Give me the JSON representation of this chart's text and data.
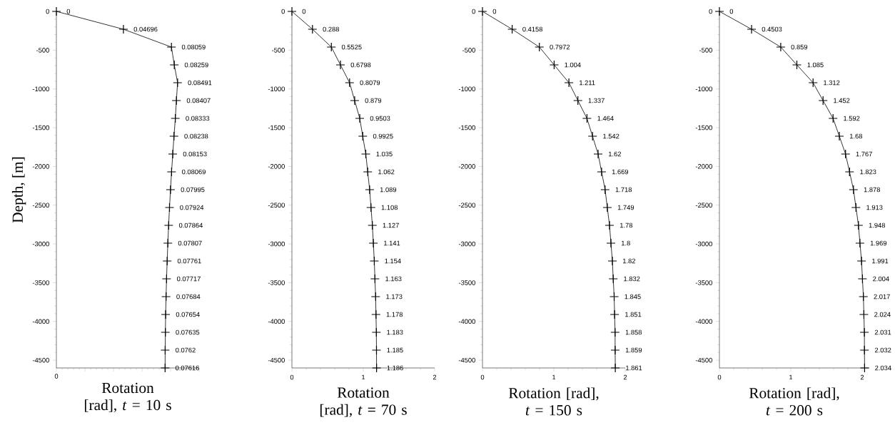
{
  "chart_data": [
    {
      "type": "line",
      "orientation": "horizontal",
      "color": "#000000",
      "marker": "cross",
      "data_labels": true,
      "xlabel": "Rotation [rad], *t* = 10 s",
      "ylabel": "Depth, [m]",
      "annotations": [
        "0"
      ],
      "xlim": [
        0,
        0.1
      ],
      "ylim": [
        -4600,
        0
      ],
      "yticks": [
        0,
        -500,
        -1000,
        -1500,
        -2000,
        -2500,
        -3000,
        -3500,
        -4000,
        -4500
      ],
      "x": [
        0,
        -230,
        -460,
        -690,
        -920,
        -1150,
        -1380,
        -1610,
        -1840,
        -2070,
        -2300,
        -2530,
        -2760,
        -2990,
        -3220,
        -3450,
        -3680,
        -3910,
        -4140,
        -4370,
        -4600
      ],
      "values": [
        0,
        0.04696,
        0.08059,
        0.08259,
        0.08491,
        0.08407,
        0.08333,
        0.08238,
        0.08153,
        0.08069,
        0.07995,
        0.07924,
        0.07864,
        0.07807,
        0.07761,
        0.07717,
        0.07684,
        0.07654,
        0.07635,
        0.0762,
        0.07616
      ]
    },
    {
      "type": "line",
      "orientation": "horizontal",
      "color": "#000000",
      "marker": "cross",
      "data_labels": true,
      "xlabel": "Rotation [rad], *t* = 70 s",
      "xlim": [
        0,
        2
      ],
      "xticks": [
        0,
        1,
        2
      ],
      "ylim": [
        -4600,
        0
      ],
      "yticks": [
        0,
        -500,
        -1000,
        -1500,
        -2000,
        -2500,
        -3000,
        -3500,
        -4000,
        -4500
      ],
      "x": [
        0,
        -230,
        -460,
        -690,
        -920,
        -1150,
        -1380,
        -1610,
        -1840,
        -2070,
        -2300,
        -2530,
        -2760,
        -2990,
        -3220,
        -3450,
        -3680,
        -3910,
        -4140,
        -4370,
        -4600
      ],
      "values": [
        0,
        0.288,
        0.5525,
        0.6798,
        0.8079,
        0.879,
        0.9503,
        0.9925,
        1.035,
        1.062,
        1.089,
        1.108,
        1.127,
        1.141,
        1.154,
        1.163,
        1.173,
        1.178,
        1.183,
        1.185,
        1.186
      ]
    },
    {
      "type": "line",
      "orientation": "horizontal",
      "color": "#000000",
      "marker": "cross",
      "data_labels": true,
      "xlabel": "Rotation [rad], *t* = 150 s",
      "xlim": [
        0,
        2
      ],
      "xticks": [
        0,
        1,
        2
      ],
      "ylim": [
        -4600,
        0
      ],
      "yticks": [
        0,
        -500,
        -1000,
        -1500,
        -2000,
        -2500,
        -3000,
        -3500,
        -4000,
        -4500
      ],
      "x": [
        0,
        -230,
        -460,
        -690,
        -920,
        -1150,
        -1380,
        -1610,
        -1840,
        -2070,
        -2300,
        -2530,
        -2760,
        -2990,
        -3220,
        -3450,
        -3680,
        -3910,
        -4140,
        -4370,
        -4600
      ],
      "values": [
        0,
        0.4158,
        0.7972,
        1.004,
        1.211,
        1.337,
        1.464,
        1.542,
        1.62,
        1.669,
        1.718,
        1.749,
        1.78,
        1.8,
        1.82,
        1.832,
        1.845,
        1.851,
        1.858,
        1.859,
        1.861
      ]
    },
    {
      "type": "line",
      "orientation": "horizontal",
      "color": "#000000",
      "marker": "cross",
      "data_labels": true,
      "xlabel": "Rotation [rad], *t* = 200 s",
      "xlim": [
        0,
        2.1
      ],
      "xticks": [
        0,
        1,
        2
      ],
      "ylim": [
        -4600,
        0
      ],
      "yticks": [
        0,
        -500,
        -1000,
        -1500,
        -2000,
        -2500,
        -3000,
        -3500,
        -4000,
        -4500
      ],
      "x": [
        0,
        -230,
        -460,
        -690,
        -920,
        -1150,
        -1380,
        -1610,
        -1840,
        -2070,
        -2300,
        -2530,
        -2760,
        -2990,
        -3220,
        -3450,
        -3680,
        -3910,
        -4140,
        -4370,
        -4600
      ],
      "values": [
        0,
        0.4503,
        0.859,
        1.085,
        1.312,
        1.452,
        1.592,
        1.68,
        1.767,
        1.823,
        1.878,
        1.913,
        1.948,
        1.969,
        1.991,
        2.004,
        2.017,
        2.024,
        2.031,
        2.032,
        2.034
      ]
    }
  ]
}
